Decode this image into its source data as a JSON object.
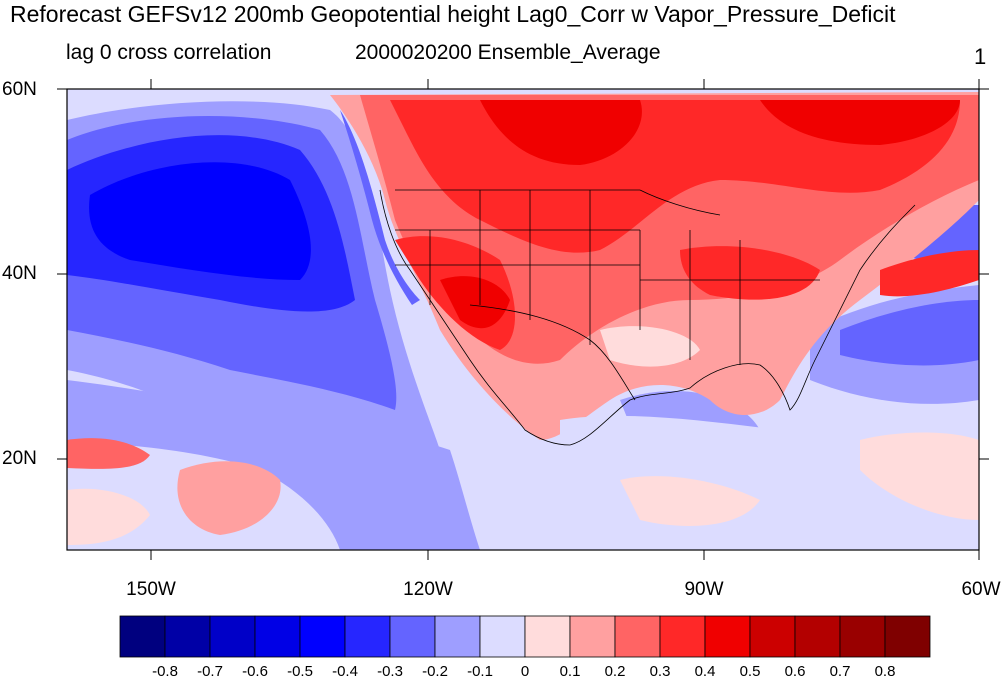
{
  "title": "Reforecast GEFSv12 200mb Geopotential height Lag0_Corr w Vapor_Pressure_Deficit",
  "left_subtitle": "lag 0 cross correlation",
  "center_subtitle": "2000020200 Ensemble_Average",
  "right_subtitle": "1",
  "map": {
    "lon_range": [
      -160,
      -60
    ],
    "lat_range": [
      10,
      60
    ],
    "lat_labels": [
      "60N",
      "40N",
      "20N"
    ],
    "lon_labels": [
      "150W",
      "120W",
      "90W",
      "60W"
    ]
  },
  "colorbar": {
    "labels": [
      "-0.8",
      "-0.7",
      "-0.6",
      "-0.5",
      "-0.4",
      "-0.3",
      "-0.2",
      "-0.1",
      "0",
      "0.1",
      "0.2",
      "0.3",
      "0.4",
      "0.5",
      "0.6",
      "0.7",
      "0.8"
    ],
    "colors": [
      "#00007f",
      "#0000a6",
      "#0000c8",
      "#0000e6",
      "#0000ff",
      "#2626ff",
      "#6464ff",
      "#9e9eff",
      "#dcdcff",
      "#ffdcdc",
      "#ffa0a0",
      "#ff6464",
      "#ff2828",
      "#f00000",
      "#cc0000",
      "#b30000",
      "#990000",
      "#7f0000"
    ]
  }
}
